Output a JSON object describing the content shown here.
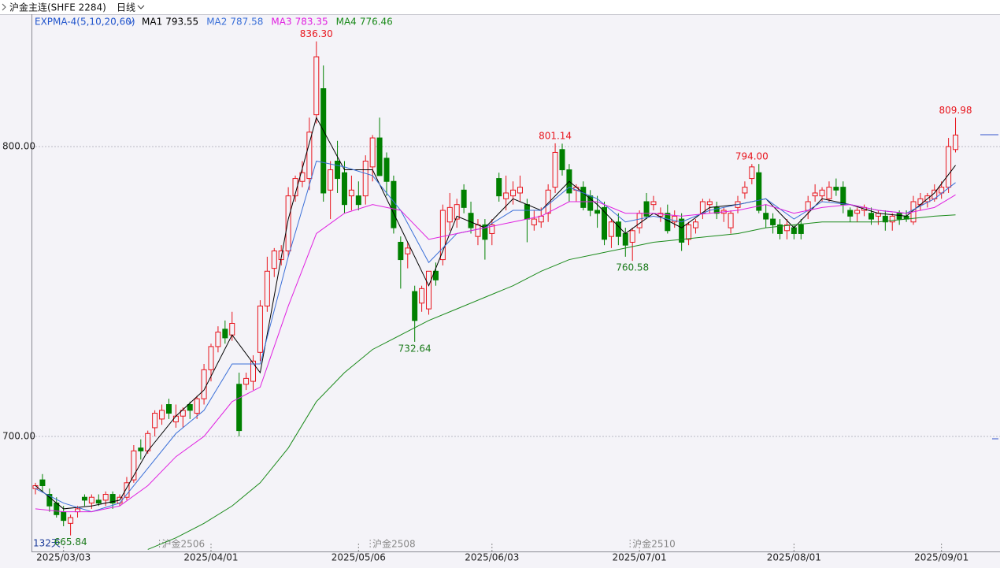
{
  "chart_data": {
    "type": "candlestick",
    "title": "沪金主连(SHFE 2284)",
    "period": "日线",
    "indicator": "EXPMA-4(5,10,20,60)",
    "day_count": "132天",
    "up_color": "#e8141c",
    "down_color": "#008000",
    "ylim": [
      660.3,
      845.7
    ],
    "yticks": [
      {
        "value": 700,
        "label": "700.00"
      },
      {
        "value": 800,
        "label": "800.00"
      }
    ],
    "grid": true,
    "categories": [
      null,
      null,
      null,
      null,
      "2025/03/03",
      null,
      null,
      null,
      null,
      null,
      null,
      null,
      null,
      null,
      null,
      null,
      null,
      null,
      null,
      null,
      null,
      null,
      null,
      null,
      null,
      "2025/04/01",
      null,
      null,
      null,
      null,
      null,
      null,
      null,
      null,
      null,
      null,
      null,
      null,
      null,
      null,
      null,
      null,
      null,
      null,
      null,
      null,
      "2025/05/06",
      null,
      null,
      null,
      null,
      null,
      null,
      null,
      null,
      null,
      null,
      null,
      null,
      null,
      null,
      null,
      null,
      null,
      null,
      "2025/06/03",
      null,
      null,
      null,
      null,
      null,
      null,
      null,
      null,
      null,
      null,
      null,
      null,
      null,
      null,
      null,
      null,
      null,
      null,
      null,
      null,
      "2025/07/01",
      null,
      null,
      null,
      null,
      null,
      null,
      null,
      null,
      null,
      null,
      null,
      null,
      null,
      null,
      null,
      null,
      null,
      null,
      null,
      null,
      null,
      "2025/08/01",
      null,
      null,
      null,
      null,
      null,
      null,
      null,
      null,
      null,
      null,
      null,
      null,
      null,
      null,
      null,
      null,
      null,
      null,
      null,
      null,
      "2025/09/01",
      null,
      null
    ],
    "ohlc": [
      [
        682,
        684,
        680,
        683
      ],
      [
        685,
        687,
        681,
        683
      ],
      [
        680,
        682,
        674,
        676
      ],
      [
        677,
        679,
        672,
        673
      ],
      [
        674,
        676,
        669,
        671
      ],
      [
        670,
        673,
        665.84,
        672
      ],
      [
        674,
        676,
        672,
        675
      ],
      [
        679,
        680,
        676,
        678
      ],
      [
        677,
        680,
        675,
        679
      ],
      [
        678,
        680,
        676,
        677
      ],
      [
        678,
        681,
        676,
        680
      ],
      [
        680,
        681,
        675,
        677
      ],
      [
        677,
        680,
        676,
        679
      ],
      [
        679,
        686,
        678,
        684
      ],
      [
        685,
        697,
        684,
        695
      ],
      [
        696,
        699,
        692,
        695
      ],
      [
        695,
        702,
        694,
        701
      ],
      [
        703,
        709,
        700,
        708
      ],
      [
        706,
        711,
        704,
        709
      ],
      [
        711,
        713,
        706,
        708
      ],
      [
        705,
        711,
        703,
        707
      ],
      [
        707,
        710,
        703,
        709
      ],
      [
        711,
        712,
        706,
        709
      ],
      [
        708,
        714,
        706,
        713
      ],
      [
        713,
        725,
        711,
        723
      ],
      [
        723,
        732,
        719,
        731
      ],
      [
        731,
        738,
        729,
        736
      ],
      [
        737,
        740,
        732,
        734
      ],
      [
        735,
        743,
        733,
        739
      ],
      [
        718,
        722,
        700,
        702
      ],
      [
        718,
        722,
        716,
        720
      ],
      [
        719,
        728,
        716,
        726
      ],
      [
        729,
        747,
        726,
        745
      ],
      [
        745,
        762,
        743,
        757
      ],
      [
        758,
        765,
        755,
        764
      ],
      [
        761,
        766,
        759,
        764
      ],
      [
        764,
        786,
        762,
        783
      ],
      [
        783,
        790,
        781,
        789
      ],
      [
        788,
        795,
        786,
        791
      ],
      [
        789,
        810,
        785,
        805
      ],
      [
        811,
        836.3,
        808,
        831
      ],
      [
        820,
        828,
        781,
        784
      ],
      [
        785,
        795,
        775,
        792
      ],
      [
        795,
        802,
        784,
        789
      ],
      [
        791,
        795,
        777,
        780
      ],
      [
        783,
        790,
        778,
        785
      ],
      [
        783,
        788,
        778,
        780
      ],
      [
        783,
        797,
        780,
        795
      ],
      [
        793,
        804,
        788,
        803
      ],
      [
        803,
        810,
        790,
        790
      ],
      [
        796,
        798,
        783,
        788
      ],
      [
        788,
        790,
        770,
        772
      ],
      [
        767,
        769,
        751,
        761
      ],
      [
        763,
        767,
        758,
        765
      ],
      [
        750,
        752,
        732.64,
        740
      ],
      [
        746,
        752,
        743,
        751
      ],
      [
        744,
        757,
        742,
        757
      ],
      [
        757,
        760,
        752,
        754
      ],
      [
        761,
        780,
        759,
        778
      ],
      [
        774,
        784,
        771,
        779
      ],
      [
        775,
        782,
        772,
        780
      ],
      [
        785,
        787,
        777,
        779
      ],
      [
        777,
        781,
        770,
        772
      ],
      [
        769,
        775,
        766,
        773
      ],
      [
        773,
        775,
        761,
        768
      ],
      [
        770,
        775,
        766,
        773
      ],
      [
        789,
        791,
        781,
        783
      ],
      [
        782,
        790,
        778,
        784
      ],
      [
        783,
        788,
        780,
        785
      ],
      [
        784,
        790,
        781,
        786
      ],
      [
        780,
        782,
        767,
        775
      ],
      [
        773,
        778,
        771,
        775
      ],
      [
        774,
        779,
        772,
        776
      ],
      [
        777,
        787,
        774,
        785
      ],
      [
        786,
        801.14,
        784,
        798
      ],
      [
        799,
        801,
        790,
        792
      ],
      [
        792,
        794,
        781,
        784
      ],
      [
        785,
        787,
        781,
        786
      ],
      [
        786,
        788,
        778,
        779
      ],
      [
        783,
        785,
        776,
        778
      ],
      [
        778,
        783,
        772,
        777
      ],
      [
        779,
        781,
        766,
        768
      ],
      [
        769,
        775,
        765,
        774
      ],
      [
        774,
        777,
        766,
        769
      ],
      [
        770,
        772,
        762,
        766
      ],
      [
        767,
        772,
        760.58,
        771
      ],
      [
        772,
        778,
        770,
        777
      ],
      [
        781,
        784,
        775,
        776
      ],
      [
        780,
        783,
        778,
        781
      ],
      [
        776,
        779,
        774,
        777
      ],
      [
        777,
        780,
        770,
        771
      ],
      [
        774,
        778,
        772,
        776
      ],
      [
        775,
        777,
        764,
        767
      ],
      [
        768,
        774,
        766,
        773
      ],
      [
        772,
        775,
        770,
        774
      ],
      [
        777,
        782,
        775,
        781
      ],
      [
        780,
        782,
        777,
        781
      ],
      [
        779,
        781,
        775,
        777
      ],
      [
        777,
        779,
        774,
        778
      ],
      [
        772,
        778,
        770,
        777
      ],
      [
        779,
        783,
        777,
        781
      ],
      [
        784,
        788,
        782,
        786
      ],
      [
        789,
        794,
        787,
        793
      ],
      [
        791,
        794,
        777,
        778
      ],
      [
        777,
        780,
        772,
        775
      ],
      [
        775,
        777,
        770,
        773
      ],
      [
        773,
        775,
        768,
        770
      ],
      [
        771,
        775,
        768,
        773
      ],
      [
        772,
        773,
        768,
        770
      ],
      [
        773,
        775,
        768,
        770
      ],
      [
        778,
        783,
        775,
        781
      ],
      [
        783,
        787,
        781,
        784
      ],
      [
        783,
        786,
        781,
        785
      ],
      [
        782,
        788,
        781,
        786
      ],
      [
        786,
        789,
        783,
        785
      ],
      [
        786,
        788,
        777,
        780
      ],
      [
        778,
        779,
        774,
        776
      ],
      [
        777,
        779,
        774,
        778
      ],
      [
        778,
        780,
        776,
        779
      ],
      [
        777,
        779,
        773,
        775
      ],
      [
        776,
        778,
        773,
        777
      ],
      [
        776,
        778,
        771,
        774
      ],
      [
        774,
        777,
        771,
        776
      ],
      [
        777,
        778,
        773,
        775
      ],
      [
        776,
        778,
        774,
        775
      ],
      [
        774,
        783,
        773,
        781
      ],
      [
        780,
        784,
        778,
        782
      ],
      [
        781,
        784,
        779,
        783
      ],
      [
        782,
        787,
        781,
        785
      ],
      [
        784,
        788,
        782,
        786
      ],
      [
        786,
        803,
        784,
        800
      ],
      [
        799,
        809.98,
        798,
        804
      ]
    ],
    "ma_lines": [
      {
        "name": "MA1",
        "color": "#000000",
        "legend_value": "793.55",
        "x": [
          0,
          4,
          8,
          12,
          16,
          20,
          24,
          28,
          32,
          36,
          40,
          44,
          48,
          52,
          56,
          60,
          64,
          68,
          72,
          76,
          80,
          84,
          88,
          92,
          96,
          100,
          104,
          108,
          112,
          116,
          120,
          124,
          128,
          131
        ],
        "values": [
          683,
          675,
          676,
          678,
          695,
          707,
          716,
          735,
          722,
          775,
          810,
          792,
          792,
          772,
          752,
          776,
          772,
          782,
          778,
          788,
          780,
          770,
          777,
          772,
          779,
          780,
          782,
          772,
          782,
          780,
          777,
          776,
          784,
          793.55
        ]
      },
      {
        "name": "MA2",
        "color": "#3a6fd8",
        "legend_value": "787.58",
        "x": [
          0,
          4,
          8,
          12,
          16,
          20,
          24,
          28,
          32,
          36,
          40,
          44,
          48,
          52,
          56,
          60,
          64,
          68,
          72,
          76,
          80,
          84,
          88,
          92,
          96,
          100,
          104,
          108,
          112,
          116,
          120,
          124,
          128,
          131
        ],
        "values": [
          682,
          677,
          674,
          677,
          689,
          701,
          709,
          725,
          725,
          762,
          795,
          793,
          790,
          778,
          760,
          770,
          772,
          778,
          778,
          786,
          782,
          774,
          776,
          774,
          778,
          780,
          782,
          775,
          781,
          780,
          778,
          777,
          782,
          787.58
        ]
      },
      {
        "name": "MA3",
        "color": "#e020e0",
        "legend_value": "783.35",
        "x": [
          0,
          4,
          8,
          12,
          16,
          20,
          24,
          28,
          32,
          36,
          40,
          44,
          48,
          52,
          56,
          60,
          64,
          68,
          72,
          76,
          80,
          84,
          88,
          92,
          96,
          100,
          104,
          108,
          112,
          116,
          120,
          124,
          128,
          131
        ],
        "values": [
          675,
          674,
          674,
          676,
          683,
          693,
          700,
          712,
          717,
          745,
          770,
          777,
          780,
          778,
          768,
          770,
          772,
          774,
          776,
          781,
          781,
          777,
          777,
          776,
          777,
          778,
          780,
          777,
          779,
          780,
          778,
          777,
          779,
          783.35
        ]
      },
      {
        "name": "MA4",
        "color": "#1a8a1a",
        "legend_value": "776.46",
        "x": [
          16,
          20,
          24,
          28,
          32,
          36,
          40,
          44,
          48,
          52,
          56,
          60,
          64,
          68,
          72,
          76,
          80,
          84,
          88,
          92,
          96,
          100,
          104,
          108,
          112,
          116,
          120,
          124,
          128,
          131
        ],
        "values": [
          661,
          665,
          670,
          676,
          684,
          696,
          712,
          722,
          730,
          735,
          740,
          744,
          748,
          752,
          757,
          761,
          763,
          765,
          767,
          768,
          769,
          770,
          772,
          773,
          774,
          774,
          774,
          775,
          776,
          776.46
        ]
      }
    ],
    "annotations": [
      {
        "index": 40,
        "at": "high",
        "label": "836.30"
      },
      {
        "index": 54,
        "at": "low",
        "label": "732.64"
      },
      {
        "index": 74,
        "at": "high",
        "label": "801.14"
      },
      {
        "index": 85,
        "at": "low",
        "label": "760.58"
      },
      {
        "index": 102,
        "at": "high",
        "label": "794.00"
      },
      {
        "index": 131,
        "at": "high",
        "label": "809.98"
      },
      {
        "index": 5,
        "at": "low",
        "label": "665.84"
      }
    ],
    "contracts": [
      {
        "index": 18,
        "label": "沪金2506"
      },
      {
        "index": 48,
        "label": "沪金2508"
      },
      {
        "index": 85,
        "label": "沪金2510"
      }
    ]
  }
}
